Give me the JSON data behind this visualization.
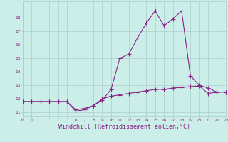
{
  "xlabel": "Windchill (Refroidissement éolien,°C)",
  "background_color": "#cceee8",
  "grid_color": "#aacccc",
  "line_color": "#882288",
  "markersize": 2.5,
  "linewidth": 0.8,
  "x_hours": [
    0,
    1,
    2,
    3,
    4,
    5,
    6,
    7,
    8,
    9,
    10,
    11,
    12,
    13,
    14,
    15,
    16,
    17,
    18,
    19,
    20,
    21,
    22,
    23
  ],
  "y_temp": [
    11.8,
    11.8,
    11.8,
    11.8,
    11.8,
    11.8,
    11.1,
    11.2,
    11.5,
    11.9,
    12.7,
    15.0,
    15.3,
    16.5,
    17.6,
    18.5,
    17.4,
    17.9,
    18.5,
    13.7,
    13.0,
    12.8,
    12.5,
    12.5
  ],
  "y_wind": [
    11.8,
    11.8,
    11.8,
    11.8,
    11.8,
    11.8,
    11.2,
    11.3,
    11.5,
    12.0,
    12.2,
    12.3,
    12.4,
    12.5,
    12.6,
    12.7,
    12.7,
    12.8,
    12.85,
    12.9,
    12.95,
    12.4,
    12.5,
    12.5
  ],
  "xlim": [
    0,
    23
  ],
  "ylim": [
    10.7,
    19.2
  ],
  "yticks": [
    11,
    12,
    13,
    14,
    15,
    16,
    17,
    18
  ],
  "xtick_labels": [
    "0",
    "1",
    "",
    "",
    "",
    "",
    "6",
    "7",
    "8",
    "9",
    "10",
    "11",
    "12",
    "13",
    "14",
    "15",
    "16",
    "17",
    "18",
    "19",
    "20",
    "21",
    "22",
    "23"
  ],
  "tick_fontsize": 4.5,
  "label_fontsize": 6.0
}
